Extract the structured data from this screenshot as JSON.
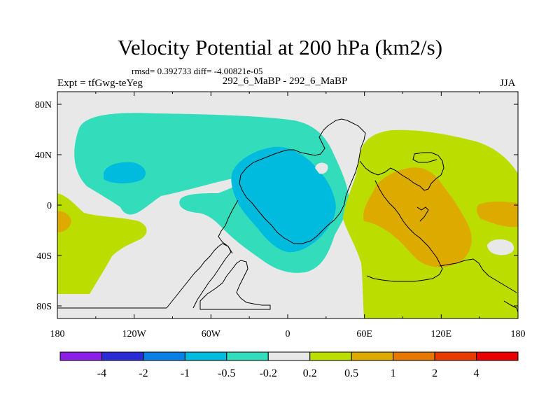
{
  "title": "Velocity Potential at 200 hPa (km2/s)",
  "stats_text": "rmsd= 0.392733  diff= -4.00821e-05",
  "experiment_label": "Expt = tfGwg-teYeg",
  "case_label": "292_6_MaBP - 292_6_MaBP",
  "season": "JJA",
  "colors": {
    "neutral": "#e8e8e8",
    "neg_weak": "#33ddbb",
    "neg_mid": "#00bbdd",
    "pos_weak": "#bbdd00",
    "pos_mid": "#ddaa00",
    "coast": "#000000"
  },
  "chart_data": {
    "type": "map",
    "title": "Velocity Potential at 200 hPa (km2/s)",
    "x_axis": {
      "range": [
        -180,
        180
      ],
      "ticks": [
        -180,
        -120,
        -60,
        0,
        60,
        120,
        180
      ],
      "tick_labels": [
        "180",
        "120W",
        "60W",
        "0",
        "60E",
        "120E",
        "180"
      ]
    },
    "y_axis": {
      "range": [
        -90,
        90
      ],
      "ticks": [
        80,
        40,
        0,
        -40,
        -80
      ],
      "tick_labels": [
        "80N",
        "40N",
        "0",
        "40S",
        "80S"
      ]
    },
    "colorbar": {
      "levels": [
        -4,
        -2,
        -1,
        -0.5,
        -0.2,
        0.2,
        0.5,
        1,
        2,
        4
      ],
      "labels": [
        "-4",
        "-2",
        "-1",
        "-0.5",
        "-0.2",
        "0.2",
        "0.5",
        "1",
        "2",
        "4"
      ],
      "colors": [
        "#8a1fe6",
        "#2a2ad6",
        "#0a80e6",
        "#00bbdd",
        "#33ddbb",
        "#e8e8e8",
        "#bbdd00",
        "#ddaa00",
        "#e67700",
        "#e63c00",
        "#e60000"
      ]
    }
  }
}
